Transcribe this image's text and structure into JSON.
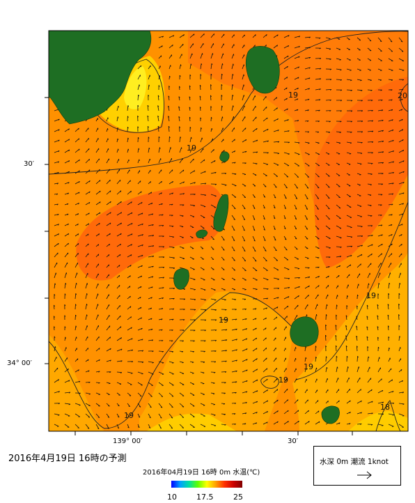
{
  "title": "2016年4月19日  16時の予測",
  "colorbar": {
    "caption": "2016年04月19日 16時 0m 水温(℃)",
    "tick_labels": [
      "10",
      "17.5",
      "25"
    ],
    "min": 10,
    "max": 25
  },
  "legend": {
    "text": "水深 0m  潮流 1knot",
    "arrow_label": "1knot"
  },
  "axes": {
    "y_ticks": [
      "30′",
      "34° 00′"
    ],
    "x_ticks": [
      "139° 00′",
      "30′"
    ]
  },
  "contours": {
    "labels": [
      "19",
      "19",
      "19",
      "19",
      "19",
      "19",
      "19",
      "20",
      "18"
    ]
  },
  "colors": {
    "land": "#1e6e23",
    "sea_warm": "#ff7a00",
    "sea_mid": "#ff9100",
    "sea_cool": "#ffb000",
    "sea_yellow": "#ffd800"
  }
}
